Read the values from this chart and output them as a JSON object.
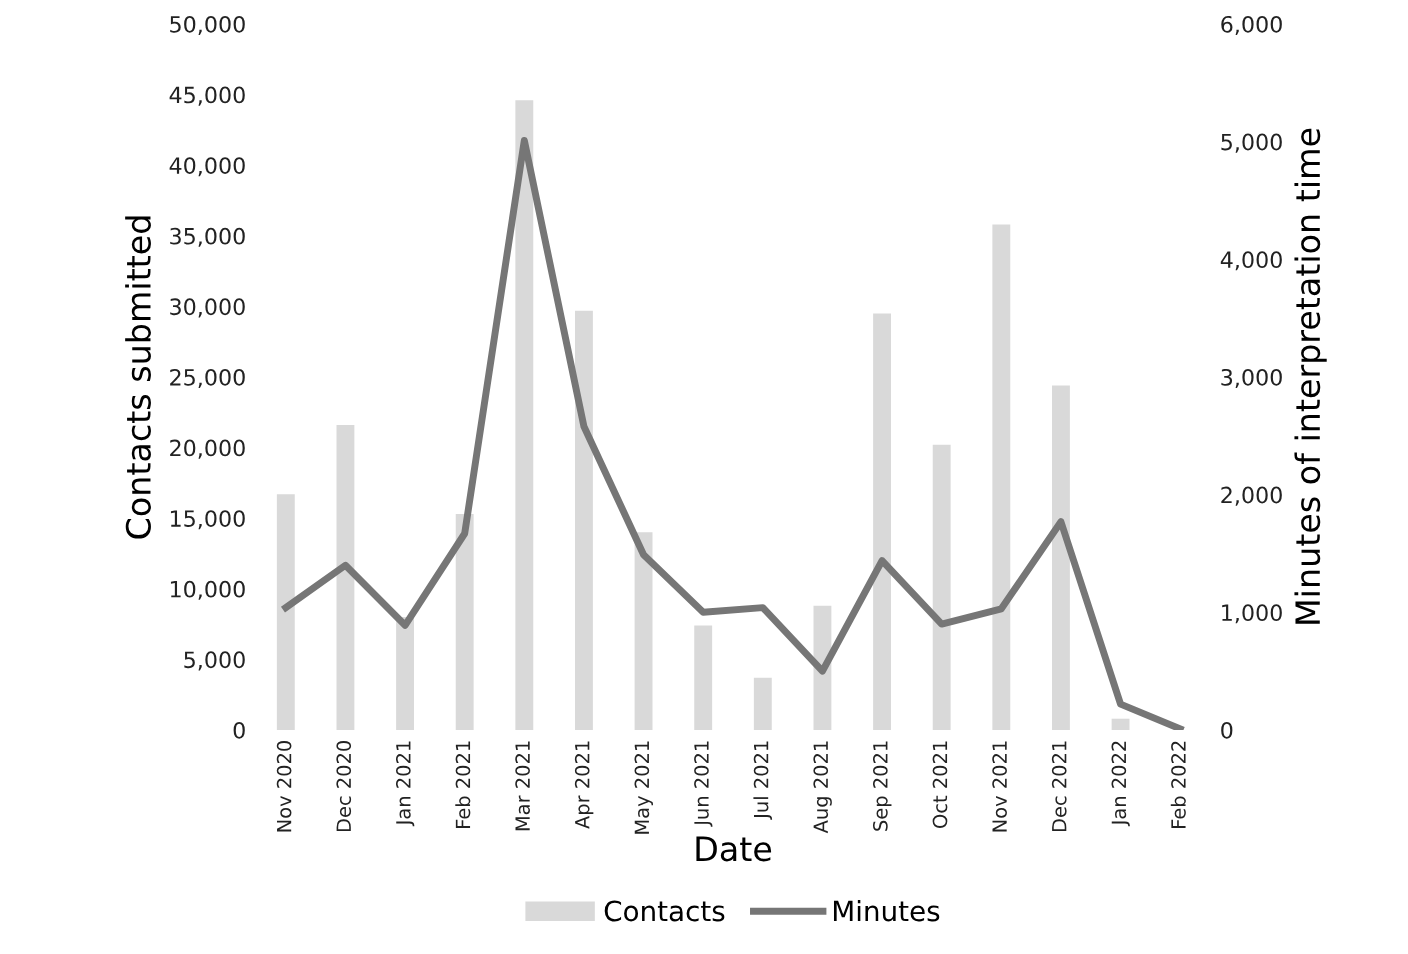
{
  "chart_data": {
    "type": "bar",
    "xlabel": "Date",
    "ylabel": "Contacts submitted",
    "y2label": "Minutes of interpretation time",
    "categories": [
      "Nov 2020",
      "Dec 2020",
      "Jan 2021",
      "Feb 2021",
      "Mar 2021",
      "Apr 2021",
      "May 2021",
      "Jun 2021",
      "Jul 2021",
      "Aug 2021",
      "Sep 2021",
      "Oct 2021",
      "Nov 2021",
      "Dec 2021",
      "Jan 2022",
      "Feb 2022"
    ],
    "series": [
      {
        "name": "Contacts",
        "color": "#d9d9d9",
        "values": [
          16700,
          21600,
          8000,
          15300,
          44600,
          29700,
          14000,
          7400,
          3700,
          8800,
          29500,
          20200,
          35800,
          24400,
          800,
          null
        ]
      },
      {
        "name": "Minutes",
        "type": "line",
        "axis": "y2",
        "color": "#767676",
        "values": [
          1040,
          1400,
          890,
          1670,
          5010,
          2580,
          1490,
          1000,
          1040,
          500,
          1440,
          900,
          1030,
          1770,
          220,
          10
        ]
      }
    ],
    "ylim": [
      0,
      50000
    ],
    "yticks": [
      {
        "value": 0,
        "label": "0"
      },
      {
        "value": 5000,
        "label": "5,000"
      },
      {
        "value": 10000,
        "label": "10,000"
      },
      {
        "value": 15000,
        "label": "15,000"
      },
      {
        "value": 20000,
        "label": "20,000"
      },
      {
        "value": 25000,
        "label": "25,000"
      },
      {
        "value": 30000,
        "label": "30,000"
      },
      {
        "value": 35000,
        "label": "35,000"
      },
      {
        "value": 40000,
        "label": "40,000"
      },
      {
        "value": 45000,
        "label": "45,000"
      },
      {
        "value": 50000,
        "label": "50,000"
      }
    ],
    "y2lim": [
      0,
      6000
    ],
    "y2ticks": [
      {
        "value": 0,
        "label": "0"
      },
      {
        "value": 1000,
        "label": "1,000"
      },
      {
        "value": 2000,
        "label": "2,000"
      },
      {
        "value": 3000,
        "label": "3,000"
      },
      {
        "value": 4000,
        "label": "4,000"
      },
      {
        "value": 5000,
        "label": "5,000"
      },
      {
        "value": 6000,
        "label": "6,000"
      }
    ],
    "grid": false,
    "legend": "bottom",
    "marker": "none",
    "line_style": "solid"
  }
}
